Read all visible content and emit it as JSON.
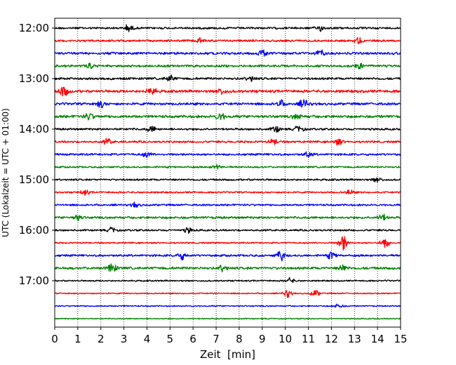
{
  "chart_data": {
    "type": "line",
    "title": "",
    "xlabel": "Zeit  [min]",
    "ylabel": "UTC (Lokalzeit = UTC + 01:00)",
    "xlim": [
      0,
      15
    ],
    "x_ticks": [
      0,
      1,
      2,
      3,
      4,
      5,
      6,
      7,
      8,
      9,
      10,
      11,
      12,
      13,
      14,
      15
    ],
    "y_tick_labels": [
      "12:00",
      "13:00",
      "14:00",
      "15:00",
      "16:00",
      "17:00"
    ],
    "grid": "vertical dotted lines at each minute",
    "traces_per_hour": 4,
    "trace_interval_min": 15,
    "colors": [
      "#000000",
      "#ff0000",
      "#0000ff",
      "#008000"
    ],
    "traces": [
      {
        "start": "12:00",
        "amplitude": 1.0,
        "events": [
          [
            3.2,
            1.6
          ],
          [
            11.5,
            1.3
          ]
        ]
      },
      {
        "start": "12:15",
        "amplitude": 1.0,
        "events": [
          [
            6.3,
            1.3
          ],
          [
            13.2,
            1.5
          ]
        ]
      },
      {
        "start": "12:30",
        "amplitude": 1.2,
        "events": [
          [
            9.0,
            1.6
          ],
          [
            11.5,
            1.4
          ]
        ]
      },
      {
        "start": "12:45",
        "amplitude": 1.1,
        "events": [
          [
            1.5,
            1.5
          ],
          [
            13.2,
            1.3
          ]
        ]
      },
      {
        "start": "13:00",
        "amplitude": 1.1,
        "events": [
          [
            5.0,
            1.4
          ],
          [
            8.5,
            1.3
          ]
        ]
      },
      {
        "start": "13:15",
        "amplitude": 1.3,
        "events": [
          [
            0.4,
            2.6
          ],
          [
            4.2,
            2.0
          ],
          [
            7.2,
            1.6
          ]
        ]
      },
      {
        "start": "13:30",
        "amplitude": 1.2,
        "events": [
          [
            2.0,
            1.6
          ],
          [
            9.8,
            1.6
          ],
          [
            10.8,
            2.1
          ]
        ]
      },
      {
        "start": "13:45",
        "amplitude": 1.3,
        "events": [
          [
            1.5,
            1.7
          ],
          [
            7.2,
            1.8
          ],
          [
            10.5,
            1.4
          ]
        ]
      },
      {
        "start": "14:00",
        "amplitude": 1.0,
        "events": [
          [
            4.2,
            1.5
          ],
          [
            9.6,
            1.6
          ],
          [
            10.6,
            1.6
          ]
        ]
      },
      {
        "start": "14:15",
        "amplitude": 1.0,
        "events": [
          [
            2.3,
            1.4
          ],
          [
            9.5,
            1.4
          ],
          [
            12.3,
            1.5
          ]
        ]
      },
      {
        "start": "14:30",
        "amplitude": 1.0,
        "events": [
          [
            4.0,
            1.3
          ],
          [
            11.0,
            1.3
          ]
        ]
      },
      {
        "start": "14:45",
        "amplitude": 0.8,
        "events": [
          [
            7.0,
            1.2
          ]
        ]
      },
      {
        "start": "15:00",
        "amplitude": 0.9,
        "events": [
          [
            14.0,
            1.3
          ]
        ]
      },
      {
        "start": "15:15",
        "amplitude": 0.8,
        "events": [
          [
            1.3,
            1.3
          ],
          [
            12.8,
            1.2
          ]
        ]
      },
      {
        "start": "15:30",
        "amplitude": 0.9,
        "events": [
          [
            3.5,
            1.2
          ]
        ]
      },
      {
        "start": "15:45",
        "amplitude": 1.1,
        "events": [
          [
            1.0,
            1.4
          ],
          [
            14.2,
            1.6
          ]
        ]
      },
      {
        "start": "16:00",
        "amplitude": 0.9,
        "events": [
          [
            2.5,
            1.3
          ],
          [
            5.8,
            1.2
          ]
        ]
      },
      {
        "start": "16:15",
        "amplitude": 0.7,
        "events": [
          [
            12.5,
            4.2
          ],
          [
            14.3,
            2.6
          ]
        ]
      },
      {
        "start": "16:30",
        "amplitude": 1.0,
        "events": [
          [
            5.5,
            2.0
          ],
          [
            9.8,
            2.6
          ],
          [
            12.0,
            1.6
          ]
        ]
      },
      {
        "start": "16:45",
        "amplitude": 1.2,
        "events": [
          [
            2.5,
            2.2
          ],
          [
            7.3,
            1.6
          ],
          [
            12.5,
            1.8
          ]
        ]
      },
      {
        "start": "17:00",
        "amplitude": 0.7,
        "events": [
          [
            10.2,
            1.3
          ]
        ]
      },
      {
        "start": "17:15",
        "amplitude": 0.6,
        "events": [
          [
            10.1,
            1.8
          ],
          [
            11.3,
            1.7
          ]
        ]
      },
      {
        "start": "17:30",
        "amplitude": 0.6,
        "events": [
          [
            12.3,
            1.2
          ]
        ]
      },
      {
        "start": "17:45",
        "amplitude": 0.5,
        "events": []
      }
    ]
  }
}
